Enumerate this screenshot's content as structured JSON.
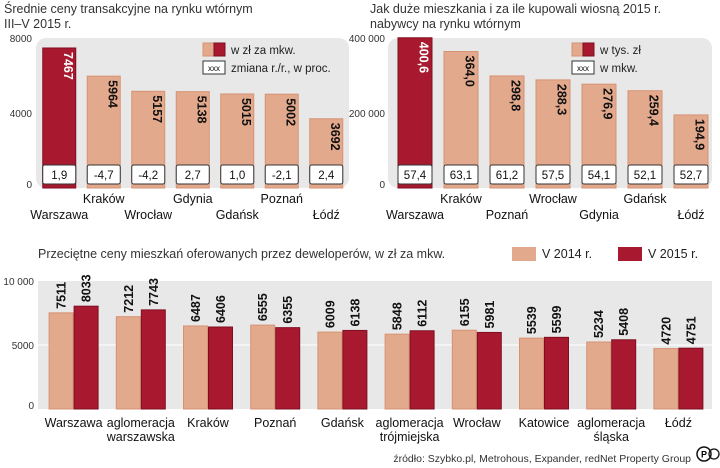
{
  "colors": {
    "panel": "#e8e8e8",
    "bar_light": "#e3a98c",
    "bar_light_edge": "#d69274",
    "bar_dark": "#a8192f",
    "bar_dark_edge": "#7e0f22",
    "grid": "#d0d0d0"
  },
  "chart_data": [
    {
      "type": "bar",
      "title": "Średnie ceny transakcyjne na rynku wtórnym",
      "subtitle": "III–V 2015 r.",
      "categories": [
        "Warszawa",
        "Kraków",
        "Wrocław",
        "Gdynia",
        "Gdańsk",
        "Poznań",
        "Łódź"
      ],
      "series": [
        {
          "name": "w zł za mkw.",
          "values": [
            7467,
            5964,
            5157,
            5138,
            5015,
            5002,
            3692
          ]
        }
      ],
      "box_values": [
        "1,9",
        "-4,7",
        "-4,2",
        "2,7",
        "1,0",
        "-2,1",
        "2,4"
      ],
      "box_legend": "zmiana r./r., w proc.",
      "box_marker": "xxx",
      "highlight": 0,
      "ylim": [
        0,
        8000
      ],
      "yticks": [
        "0",
        "4000",
        "8000"
      ],
      "value_labels": [
        "7467",
        "5964",
        "5157",
        "5138",
        "5015",
        "5002",
        "3692"
      ]
    },
    {
      "type": "bar",
      "title": "Jak duże mieszkania i za ile kupowali wiosną 2015 r.",
      "subtitle": "nabywcy na rynku wtórnym",
      "categories": [
        "Warszawa",
        "Kraków",
        "Poznań",
        "Wrocław",
        "Gdynia",
        "Gdańsk",
        "Łódź"
      ],
      "series": [
        {
          "name": "w tys. zł",
          "values": [
            400.6,
            364.0,
            298.8,
            288.3,
            276.9,
            259.4,
            194.9
          ]
        }
      ],
      "box_values": [
        "57,4",
        "63,1",
        "61,2",
        "57,5",
        "54,1",
        "52,1",
        "52,7"
      ],
      "box_legend": "w mkw.",
      "box_marker": "xxx",
      "highlight": 0,
      "ylim": [
        0,
        400000
      ],
      "yticks": [
        "0",
        "200 000",
        "400 000"
      ],
      "value_labels": [
        "400,6",
        "364,0",
        "298,8",
        "288,3",
        "276,9",
        "259,4",
        "194,9"
      ]
    },
    {
      "type": "bar",
      "title": "Przeciętne ceny mieszkań oferowanych przez deweloperów, w zł za mkw.",
      "categories": [
        [
          "Warszawa"
        ],
        [
          "aglomeracja",
          "warszawska"
        ],
        [
          "Kraków"
        ],
        [
          "Poznań"
        ],
        [
          "Gdańsk"
        ],
        [
          "aglomeracja",
          "trójmiejska"
        ],
        [
          "Wrocław"
        ],
        [
          "Katowice"
        ],
        [
          "aglomeracja",
          "śląska"
        ],
        [
          "Łódź"
        ]
      ],
      "series": [
        {
          "name": "V 2014 r.",
          "values": [
            7511,
            7212,
            6487,
            6555,
            6009,
            5848,
            6155,
            5539,
            5234,
            4720
          ]
        },
        {
          "name": "V 2015 r.",
          "values": [
            8033,
            7743,
            6406,
            6355,
            6138,
            6112,
            5981,
            5599,
            5408,
            4751
          ]
        }
      ],
      "ylim": [
        0,
        10000
      ],
      "yticks": [
        "0",
        "5000",
        "10 000"
      ]
    }
  ],
  "source": "źródło: Szybko.pl, Metrohous, Expander, redNet Property Group",
  "logo": "PAP"
}
